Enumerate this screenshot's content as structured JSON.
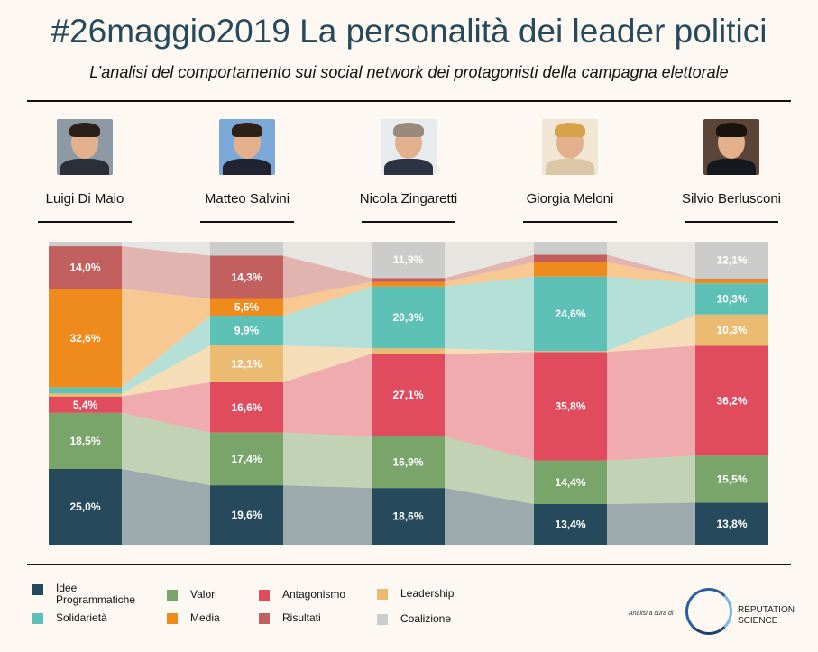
{
  "header": {
    "title": "#26maggio2019 La personalità dei leader politici",
    "subtitle": "L’analisi del comportamento sui social network dei protagonisti della campagna elettorale"
  },
  "leaders": [
    {
      "name": "Luigi Di Maio"
    },
    {
      "name": "Matteo Salvini"
    },
    {
      "name": "Nicola Zingaretti"
    },
    {
      "name": "Giorgia Meloni"
    },
    {
      "name": "Silvio Berlusconi"
    }
  ],
  "chart_data": {
    "type": "bar",
    "stacked": true,
    "normalized": true,
    "unit": "%",
    "categories": [
      "Luigi Di Maio",
      "Matteo Salvini",
      "Nicola Zingaretti",
      "Giorgia Meloni",
      "Silvio Berlusconi"
    ],
    "series": [
      {
        "name": "Idee Programmatiche",
        "color": "#264a5b",
        "values": [
          25.0,
          19.6,
          18.6,
          13.4,
          13.8
        ],
        "labels": [
          "25,0%",
          "19,6%",
          "18,6%",
          "13,4%",
          "13,8%"
        ]
      },
      {
        "name": "Valori",
        "color": "#7aa56a",
        "values": [
          18.5,
          17.4,
          16.9,
          14.4,
          15.5
        ],
        "labels": [
          "18,5%",
          "17,4%",
          "16,9%",
          "14,4%",
          "15,5%"
        ]
      },
      {
        "name": "Antagonismo",
        "color": "#e14b5e",
        "values": [
          5.4,
          16.6,
          27.1,
          35.8,
          36.2
        ],
        "labels": [
          "5,4%",
          "16,6%",
          "27,1%",
          "35,8%",
          "36,2%"
        ]
      },
      {
        "name": "Leadership",
        "color": "#ebbb72",
        "values": [
          1.0,
          12.1,
          1.8,
          0.3,
          10.3
        ],
        "labels": [
          "",
          "12,1%",
          "",
          "",
          "10,3%"
        ]
      },
      {
        "name": "Solidarietà",
        "color": "#5ec1b6",
        "values": [
          2.0,
          9.9,
          20.3,
          24.6,
          10.3
        ],
        "labels": [
          "",
          "9,9%",
          "20,3%",
          "24,6%",
          "10,3%"
        ]
      },
      {
        "name": "Media",
        "color": "#ef8b1c",
        "values": [
          32.6,
          5.5,
          1.5,
          4.8,
          1.4
        ],
        "labels": [
          "32,6%",
          "5,5%",
          "",
          "",
          ""
        ]
      },
      {
        "name": "Risultati",
        "color": "#c1605f",
        "values": [
          14.0,
          14.3,
          1.3,
          2.4,
          0.2
        ],
        "labels": [
          "14,0%",
          "14,3%",
          "",
          "",
          ""
        ]
      },
      {
        "name": "Coalizione",
        "color": "#cccccb",
        "values": [
          1.5,
          4.6,
          11.9,
          4.3,
          12.1
        ],
        "labels": [
          "",
          "",
          "11,9%",
          "",
          "12,1%"
        ]
      }
    ]
  },
  "legend": {
    "items": [
      {
        "label": "Idee\nProgrammatiche",
        "color": "#264a5b"
      },
      {
        "label": "Valori",
        "color": "#7aa56a"
      },
      {
        "label": "Antagonismo",
        "color": "#e14b5e"
      },
      {
        "label": "Leadership",
        "color": "#ebbb72"
      },
      {
        "label": "Solidarietà",
        "color": "#5ec1b6"
      },
      {
        "label": "Media",
        "color": "#ef8b1c"
      },
      {
        "label": "Risultati",
        "color": "#c1605f"
      },
      {
        "label": "Coalizione",
        "color": "#cccccb"
      }
    ]
  },
  "footer": {
    "credit": "Analisi a cura di",
    "logo_line1": "REPUTATION",
    "logo_line2": "SCIENCE"
  }
}
